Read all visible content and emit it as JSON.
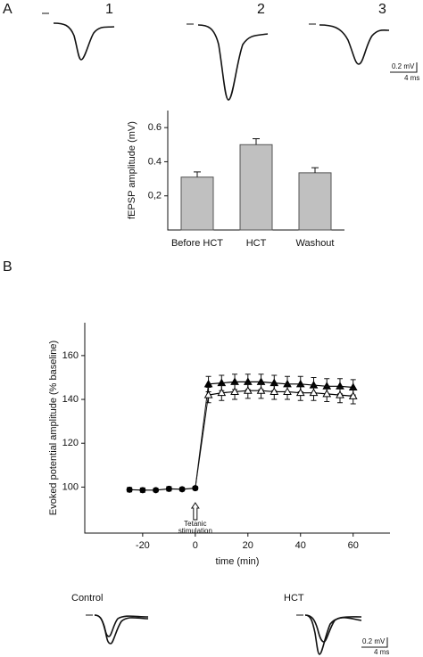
{
  "panel_labels": [
    "A",
    "B"
  ],
  "traces": {
    "labels": [
      "1",
      "2",
      "3"
    ],
    "scale_voltage": "0.2 mV",
    "scale_time": "4 ms"
  },
  "bottom_traces": {
    "labels": [
      "Control",
      "HCT"
    ],
    "scale_voltage": "0.2 mV",
    "scale_time": "4 ms"
  },
  "chart_data": [
    {
      "type": "bar",
      "ylabel": "fEPSP amplitude (mV)",
      "categories": [
        "Before HCT",
        "HCT",
        "Washout"
      ],
      "values": [
        0.31,
        0.5,
        0.335
      ],
      "errors": [
        0.03,
        0.035,
        0.03
      ],
      "color": "#c0c0c0",
      "ylim": [
        0,
        0.7
      ],
      "yticks": [
        {
          "value": 0.2,
          "label": "0,2"
        },
        0.4,
        0.6
      ]
    },
    {
      "type": "line",
      "xlabel": "time (min)",
      "ylabel": "Evoked potential amplitude (% baseline)",
      "xlim": [
        -42,
        74
      ],
      "ylim": [
        79,
        175
      ],
      "xticks": [
        -20,
        0,
        20,
        40,
        60
      ],
      "yticks": [
        100,
        120,
        140,
        160
      ],
      "annotation": {
        "text": [
          "Tetanic",
          "stimulation"
        ],
        "x": 0
      },
      "series": [
        {
          "x": [
            -25,
            -20,
            -15,
            -10,
            -5,
            0
          ],
          "values": [
            98.8,
            98.6,
            98.6,
            99.2,
            99.0,
            99.5
          ],
          "errors": [
            1,
            1,
            0.8,
            1,
            0.8,
            0.8
          ],
          "color": "#000000",
          "marker": "circle",
          "fill": "filled"
        },
        {
          "x": [
            5,
            10,
            15,
            20,
            25,
            30,
            35,
            40,
            45,
            50,
            55,
            60
          ],
          "values": [
            147,
            147.5,
            148,
            148,
            148,
            147.5,
            147,
            147,
            146.5,
            146,
            146,
            145.5
          ],
          "errors": [
            3.5,
            3.5,
            3.5,
            3.5,
            3.5,
            3.5,
            3.5,
            3.5,
            3.5,
            3.5,
            3.5,
            3.5
          ],
          "color": "#000000",
          "marker": "triangle",
          "fill": "filled"
        },
        {
          "x": [
            5,
            10,
            15,
            20,
            25,
            30,
            35,
            40,
            45,
            50,
            55,
            60
          ],
          "values": [
            142,
            143,
            143.5,
            144,
            144,
            143.5,
            143.5,
            143,
            143,
            142.5,
            142,
            141.5
          ],
          "errors": [
            3.5,
            3.5,
            3.5,
            3.5,
            3.5,
            3.5,
            3.5,
            3.5,
            3.5,
            3.5,
            3.5,
            3.5
          ],
          "color": "#000000",
          "marker": "triangle",
          "fill": "open"
        }
      ]
    }
  ]
}
